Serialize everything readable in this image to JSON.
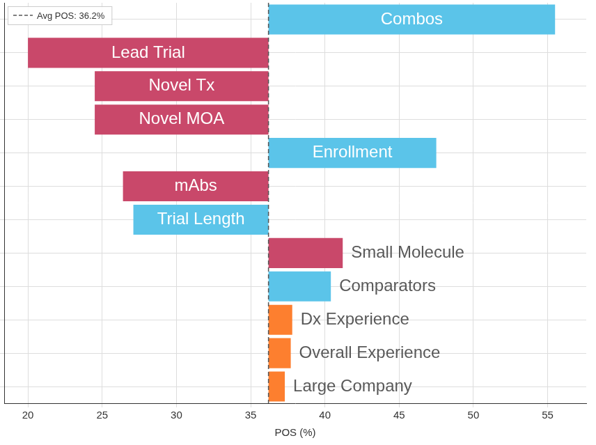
{
  "chart_data": {
    "type": "bar",
    "orientation": "horizontal",
    "categories": [
      "Combos",
      "Lead Trial",
      "Novel Tx",
      "Novel MOA",
      "Enrollment",
      "mAbs",
      "Trial Length",
      "Small Molecule",
      "Comparators",
      "Dx Experience",
      "Overall Experience",
      "Large Company"
    ],
    "values": [
      55.5,
      20,
      24.5,
      24.5,
      47.5,
      26.4,
      27.1,
      41.2,
      40.4,
      37.8,
      37.7,
      37.3
    ],
    "colors": [
      "#5bc4e9",
      "#c9486a",
      "#c9486a",
      "#c9486a",
      "#5bc4e9",
      "#c9486a",
      "#5bc4e9",
      "#c9486a",
      "#5bc4e9",
      "#fd7f2f",
      "#fd7f2f",
      "#fd7f2f"
    ],
    "reference_line": {
      "value": 36.2,
      "label": "Avg POS: 36.2%",
      "line_style": "dashed"
    },
    "x_label": "POS (%)",
    "xlim": [
      18.4,
      57.6
    ],
    "xticks": [
      20,
      25,
      30,
      35,
      40,
      45,
      50,
      55
    ],
    "grid": true,
    "tick_labels": "x"
  }
}
